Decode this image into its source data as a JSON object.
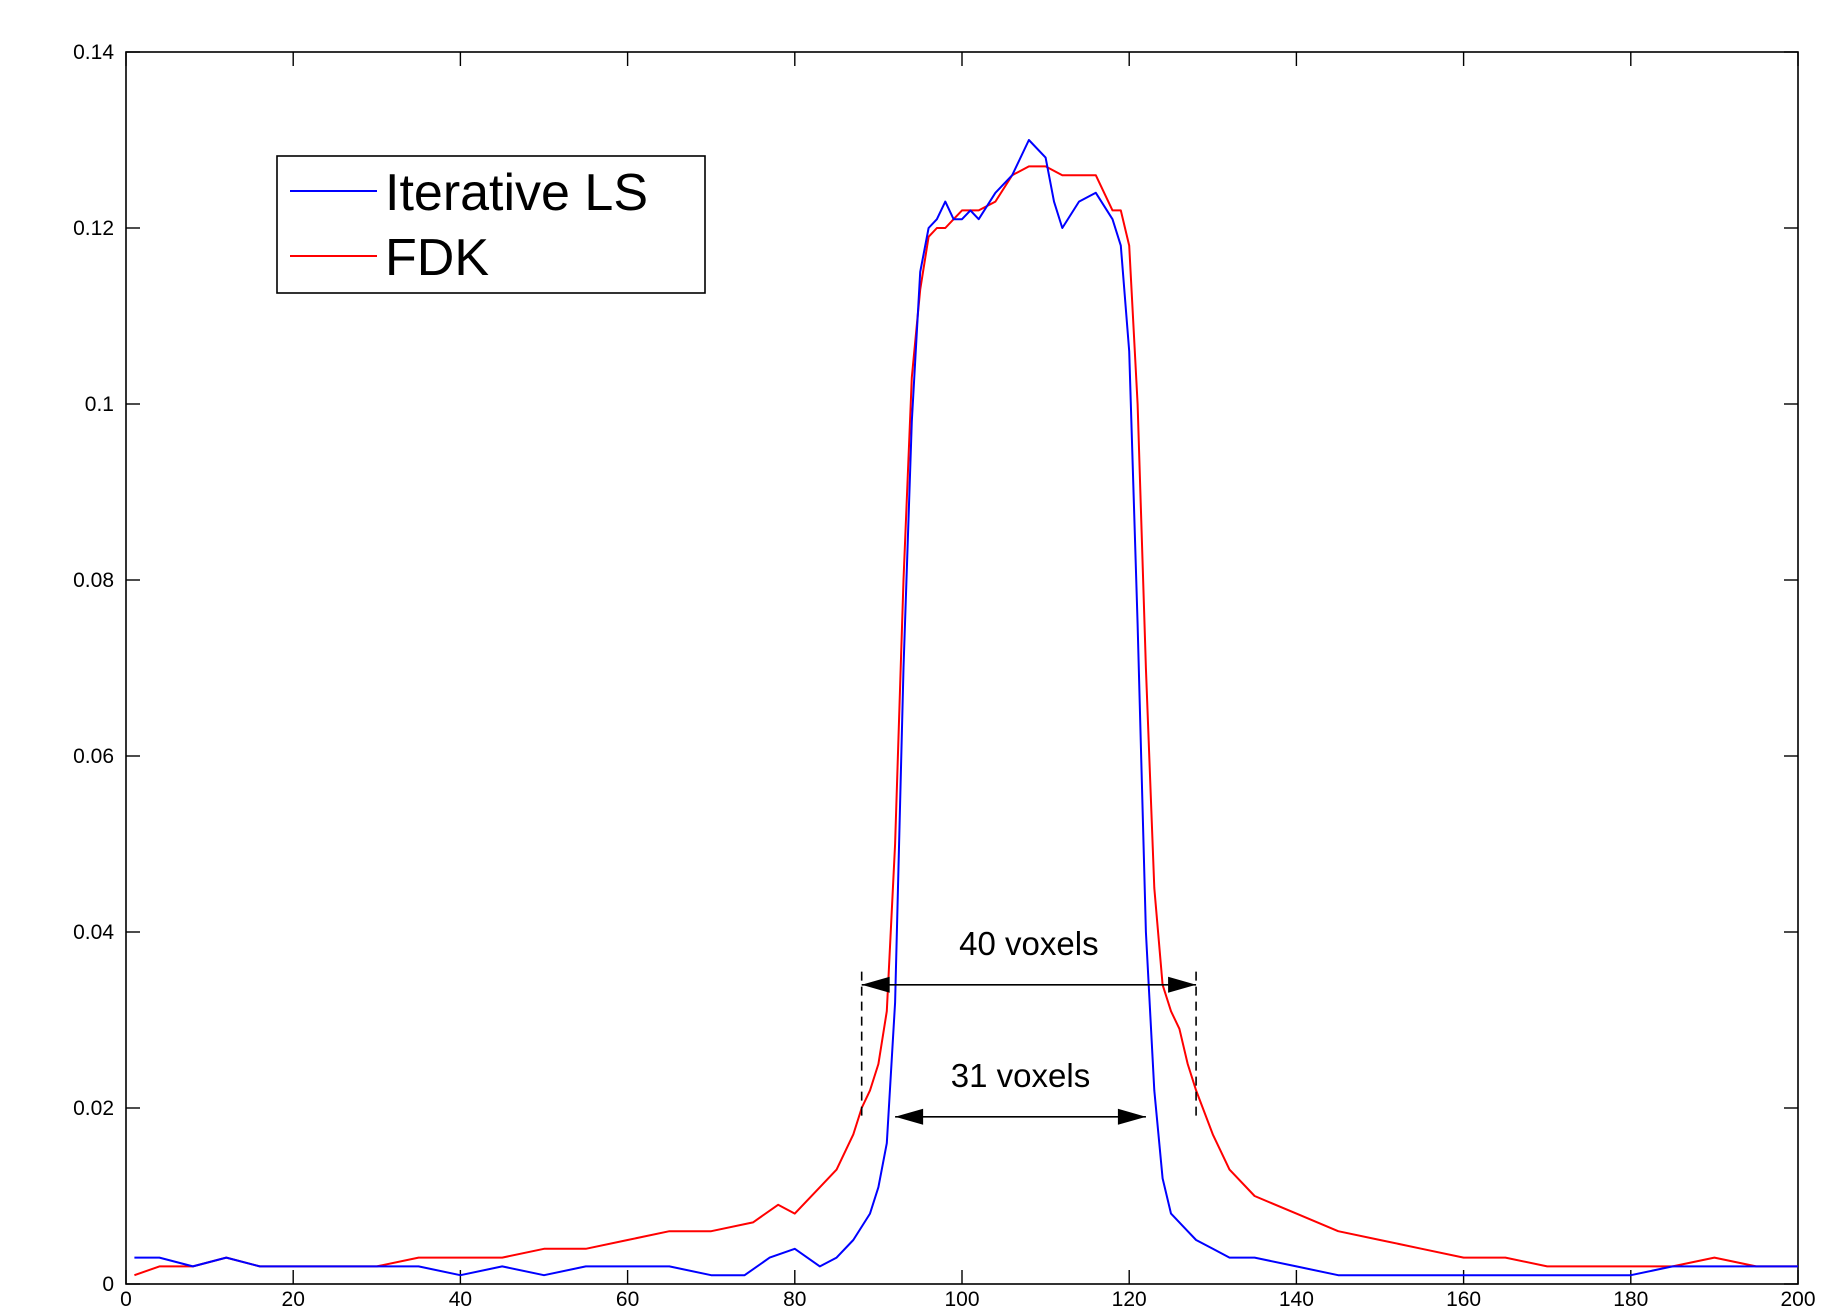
{
  "chart_data": {
    "type": "line",
    "title": "",
    "xlabel": "",
    "ylabel": "",
    "xlim": [
      0,
      200
    ],
    "ylim": [
      0,
      0.14
    ],
    "grid": false,
    "legend_position": "top-left",
    "x_ticks": [
      0,
      20,
      40,
      60,
      80,
      100,
      120,
      140,
      160,
      180,
      200
    ],
    "x_tick_labels": [
      "0",
      "20",
      "40",
      "60",
      "80",
      "100",
      "120",
      "140",
      "160",
      "180",
      "200"
    ],
    "y_ticks": [
      0,
      0.02,
      0.04,
      0.06,
      0.08,
      0.1,
      0.12,
      0.14
    ],
    "y_tick_labels": [
      "0",
      "0.02",
      "0.04",
      "0.06",
      "0.08",
      "0.1",
      "0.12",
      "0.14"
    ],
    "series": [
      {
        "name": "Iterative LS",
        "color": "#0000ff",
        "x": [
          1,
          4,
          8,
          12,
          16,
          20,
          25,
          30,
          35,
          40,
          45,
          50,
          55,
          60,
          65,
          70,
          74,
          77,
          80,
          83,
          85,
          87,
          89,
          90,
          91,
          92,
          93,
          94,
          95,
          96,
          97,
          98,
          99,
          100,
          101,
          102,
          104,
          106,
          108,
          110,
          111,
          112,
          114,
          116,
          118,
          119,
          120,
          121,
          122,
          123,
          124,
          125,
          126,
          127,
          128,
          130,
          132,
          135,
          140,
          145,
          150,
          155,
          160,
          165,
          170,
          175,
          180,
          185,
          190,
          195,
          200
        ],
        "y": [
          0.003,
          0.003,
          0.002,
          0.003,
          0.002,
          0.002,
          0.002,
          0.002,
          0.002,
          0.001,
          0.002,
          0.001,
          0.002,
          0.002,
          0.002,
          0.001,
          0.001,
          0.003,
          0.004,
          0.002,
          0.003,
          0.005,
          0.008,
          0.011,
          0.016,
          0.032,
          0.07,
          0.098,
          0.115,
          0.12,
          0.121,
          0.123,
          0.121,
          0.121,
          0.122,
          0.121,
          0.124,
          0.126,
          0.13,
          0.128,
          0.123,
          0.12,
          0.123,
          0.124,
          0.121,
          0.118,
          0.106,
          0.075,
          0.04,
          0.022,
          0.012,
          0.008,
          0.007,
          0.006,
          0.005,
          0.004,
          0.003,
          0.003,
          0.002,
          0.001,
          0.001,
          0.001,
          0.001,
          0.001,
          0.001,
          0.001,
          0.001,
          0.002,
          0.002,
          0.002,
          0.002
        ]
      },
      {
        "name": "FDK",
        "color": "#ff0000",
        "x": [
          1,
          4,
          8,
          12,
          16,
          20,
          25,
          30,
          35,
          40,
          45,
          50,
          55,
          60,
          65,
          70,
          75,
          78,
          80,
          83,
          85,
          87,
          88,
          89,
          90,
          91,
          92,
          93,
          94,
          95,
          96,
          97,
          98,
          99,
          100,
          102,
          104,
          106,
          108,
          110,
          112,
          114,
          116,
          118,
          119,
          120,
          121,
          122,
          123,
          124,
          125,
          126,
          127,
          128,
          130,
          132,
          135,
          140,
          145,
          150,
          155,
          160,
          165,
          170,
          175,
          180,
          185,
          190,
          195,
          200
        ],
        "y": [
          0.001,
          0.002,
          0.002,
          0.003,
          0.002,
          0.002,
          0.002,
          0.002,
          0.003,
          0.003,
          0.003,
          0.004,
          0.004,
          0.005,
          0.006,
          0.006,
          0.007,
          0.009,
          0.008,
          0.011,
          0.013,
          0.017,
          0.02,
          0.022,
          0.025,
          0.031,
          0.05,
          0.08,
          0.103,
          0.113,
          0.119,
          0.12,
          0.12,
          0.121,
          0.122,
          0.122,
          0.123,
          0.126,
          0.127,
          0.127,
          0.126,
          0.126,
          0.126,
          0.122,
          0.122,
          0.118,
          0.1,
          0.07,
          0.045,
          0.034,
          0.031,
          0.029,
          0.025,
          0.022,
          0.017,
          0.013,
          0.01,
          0.008,
          0.006,
          0.005,
          0.004,
          0.003,
          0.003,
          0.002,
          0.002,
          0.002,
          0.002,
          0.003,
          0.002,
          0.002
        ]
      }
    ],
    "annotations": [
      {
        "text": "40 voxels",
        "x_start": 88,
        "x_end": 128,
        "y": 0.034
      },
      {
        "text": "31 voxels",
        "x_start": 92,
        "x_end": 122,
        "y": 0.019
      }
    ]
  }
}
